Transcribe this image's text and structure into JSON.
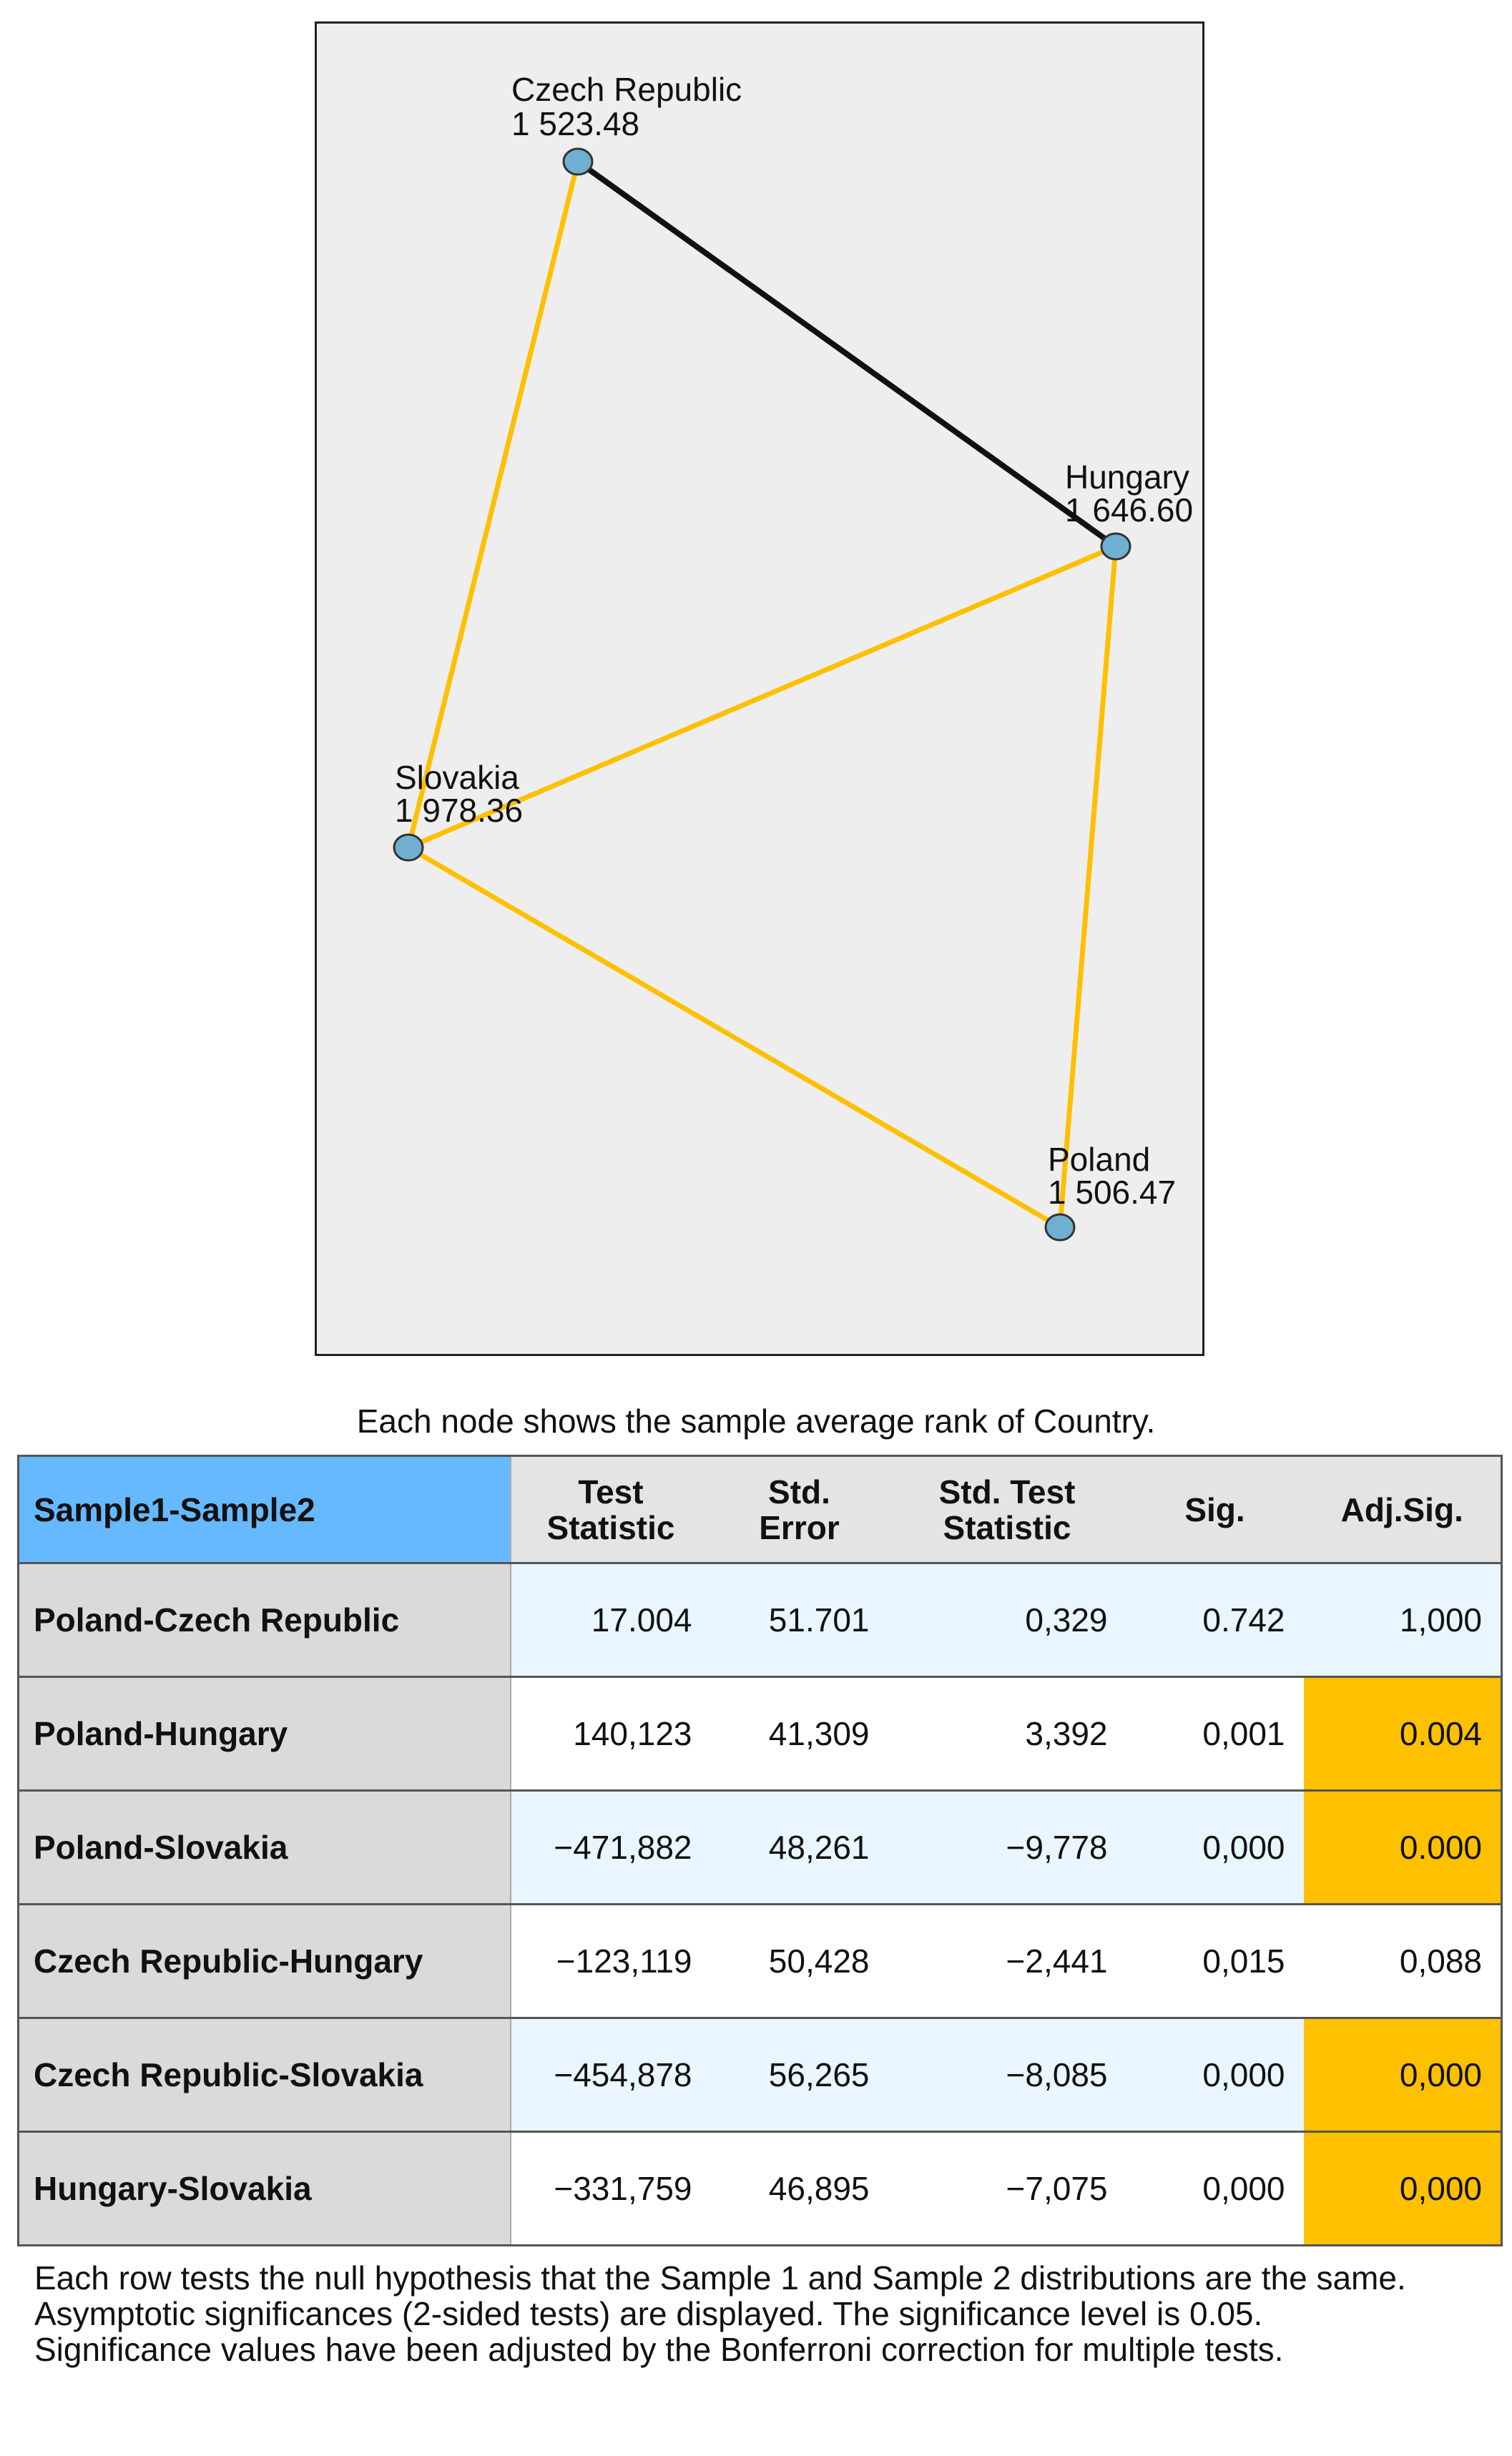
{
  "diagram": {
    "nodes": [
      {
        "id": "czech",
        "name": "Czech Republic",
        "value": "1 523.48"
      },
      {
        "id": "hungary",
        "name": "Hungary",
        "value": "1 646.60"
      },
      {
        "id": "slovakia",
        "name": "Slovakia",
        "value": "1 978.36"
      },
      {
        "id": "poland",
        "name": "Poland",
        "value": "1 506.47"
      }
    ],
    "edges": [
      {
        "from": "czech",
        "to": "hungary",
        "significant": false
      },
      {
        "from": "czech",
        "to": "slovakia",
        "significant": true
      },
      {
        "from": "hungary",
        "to": "slovakia",
        "significant": true
      },
      {
        "from": "hungary",
        "to": "poland",
        "significant": true
      },
      {
        "from": "slovakia",
        "to": "poland",
        "significant": true
      }
    ],
    "colors": {
      "significant_edge": "#ffc000",
      "nonsignificant_edge": "#111111",
      "node_fill": "#6fb0d2"
    }
  },
  "caption": "Each node shows the sample average rank of Country.",
  "table": {
    "headers": {
      "sample": "Sample1-Sample2",
      "test_statistic": "Test\nStatistic",
      "std_error": "Std.\nError",
      "std_test_statistic": "Std. Test\nStatistic",
      "sig": "Sig.",
      "adj_sig": "Adj.Sig."
    },
    "highlight_color": "#ffc000",
    "rows": [
      {
        "label": "Poland-Czech Republic",
        "test_statistic": "17.004",
        "std_error": "51.701",
        "std_test_statistic": "0,329",
        "sig": "0.742",
        "adj_sig": "1,000",
        "highlight": false
      },
      {
        "label": "Poland-Hungary",
        "test_statistic": "140,123",
        "std_error": "41,309",
        "std_test_statistic": "3,392",
        "sig": "0,001",
        "adj_sig": "0.004",
        "highlight": true
      },
      {
        "label": "Poland-Slovakia",
        "test_statistic": "−471,882",
        "std_error": "48,261",
        "std_test_statistic": "−9,778",
        "sig": "0,000",
        "adj_sig": "0.000",
        "highlight": true
      },
      {
        "label": "Czech Republic-Hungary",
        "test_statistic": "−123,119",
        "std_error": "50,428",
        "std_test_statistic": "−2,441",
        "sig": "0,015",
        "adj_sig": "0,088",
        "highlight": false
      },
      {
        "label": "Czech Republic-Slovakia",
        "test_statistic": "−454,878",
        "std_error": "56,265",
        "std_test_statistic": "−8,085",
        "sig": "0,000",
        "adj_sig": "0,000",
        "highlight": true
      },
      {
        "label": "Hungary-Slovakia",
        "test_statistic": "−331,759",
        "std_error": "46,895",
        "std_test_statistic": "−7,075",
        "sig": "0,000",
        "adj_sig": "0,000",
        "highlight": true
      }
    ]
  },
  "footnotes": [
    "Each row tests the null hypothesis that the Sample 1 and Sample 2 distributions are the same.",
    "Asymptotic significances (2-sided tests) are displayed. The significance level is 0.05.",
    "Significance values have been adjusted by the Bonferroni correction for multiple tests."
  ]
}
